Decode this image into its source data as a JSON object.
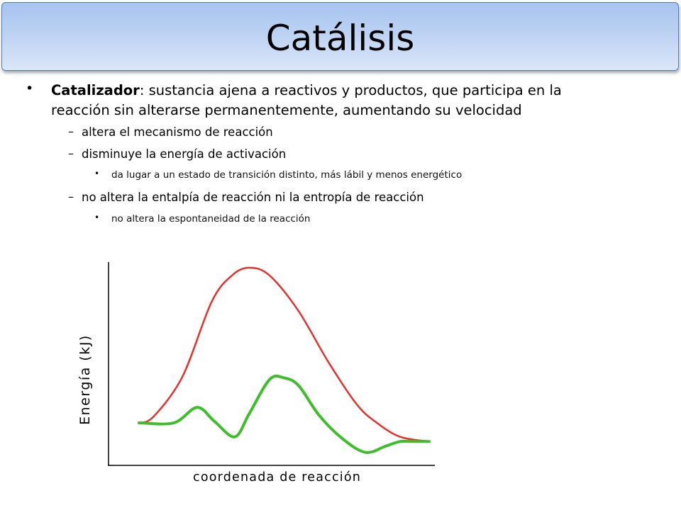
{
  "title": "Catálisis",
  "bullets": {
    "main_term": "Catalizador",
    "main_rest_line1": ": sustancia ajena a reactivos y productos, que participa en la",
    "main_rest_line2": "reacción sin alterarse permanentemente, aumentando su velocidad",
    "sub1": "altera el mecanismo de reacción",
    "sub2": "disminuye la energía de activación",
    "sub2_detail": "da lugar a un estado de transición distinto, más lábil y menos energético",
    "sub3": "no altera la entalpía de reacción ni la entropía de reacción",
    "sub3_detail": "no altera la espontaneidad de la reacción"
  },
  "chart_data": {
    "type": "line",
    "ylabel": "Energía (kJ)",
    "xlabel": "coordenada de reacción",
    "series": [
      {
        "color": "#e8302c",
        "x": [
          0.0,
          0.05,
          0.15,
          0.25,
          0.32,
          0.38,
          0.45,
          0.55,
          0.65,
          0.75,
          0.82,
          0.9,
          1.0
        ],
        "y": [
          0.0,
          0.04,
          0.3,
          0.78,
          0.95,
          1.0,
          0.95,
          0.72,
          0.4,
          0.12,
          0.0,
          -0.09,
          -0.12
        ]
      },
      {
        "color": "#3dbf2a",
        "x": [
          0.0,
          0.12,
          0.2,
          0.26,
          0.33,
          0.38,
          0.45,
          0.5,
          0.55,
          0.62,
          0.7,
          0.78,
          0.85,
          0.9,
          0.95,
          1.0
        ],
        "y": [
          0.0,
          0.0,
          0.1,
          0.01,
          -0.09,
          0.06,
          0.28,
          0.29,
          0.24,
          0.05,
          -0.1,
          -0.19,
          -0.15,
          -0.12,
          -0.12,
          -0.12
        ]
      }
    ]
  },
  "colors": {
    "title_bar": "#b7cff2",
    "title_border": "#4f81bd",
    "uncatalyzed": "#e8302c",
    "catalyzed": "#3dbf2a"
  }
}
